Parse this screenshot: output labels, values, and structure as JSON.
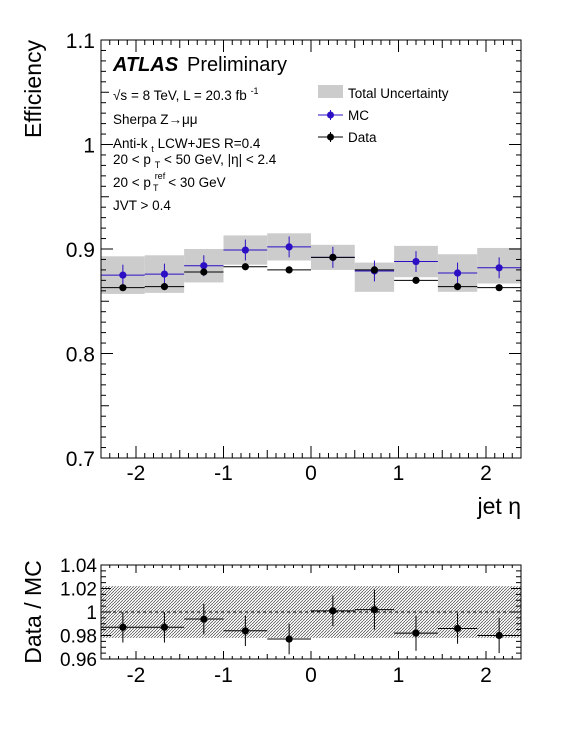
{
  "chart_data": [
    {
      "type": "scatter",
      "xlabel": "jet η",
      "ylabel": "Efficiency",
      "xlim": [
        -2.4,
        2.4
      ],
      "ylim": [
        0.7,
        1.1
      ],
      "x_ticks": [
        "-2",
        "-1",
        "0",
        "1",
        "2"
      ],
      "y_ticks": [
        "0.7",
        "0.8",
        "0.9",
        "1",
        "1.1"
      ],
      "annotations": {
        "atlas": "ATLAS",
        "preliminary": "Preliminary",
        "energy_sqrt": "√s",
        "energy_rest": "= 8 TeV, L = 20.3 fb",
        "energy_sup": "-1",
        "generator": "Sherpa Z→μμ",
        "jets_main": "Anti-k",
        "jets_sub": "t",
        "jets_rest": " LCW+JES R=0.4",
        "pt_a": "20 < p",
        "pt_sub": "T",
        "pt_b": " < 50 GeV, |η| < 2.4",
        "ptref_a": "20 < p",
        "ptref_sup": "ref",
        "ptref_sub": "T",
        "ptref_b": " < 30 GeV",
        "jvt": "JVT > 0.4"
      },
      "legend_position": "top-right",
      "legend": [
        "Total Uncertainty",
        "MC",
        "Data"
      ],
      "colors": {
        "mc": "#2a0fc4",
        "data": "#000000",
        "band": "#cccccc"
      },
      "bin_edges": [
        -2.4,
        -1.9,
        -1.45,
        -1.0,
        -0.5,
        0.0,
        0.5,
        0.95,
        1.45,
        1.9,
        2.4
      ],
      "x": [
        -2.15,
        -1.675,
        -1.225,
        -0.75,
        -0.25,
        0.25,
        0.725,
        1.2,
        1.675,
        2.15
      ],
      "series": [
        {
          "name": "MC",
          "values": [
            0.875,
            0.876,
            0.884,
            0.899,
            0.902,
            0.892,
            0.879,
            0.888,
            0.877,
            0.882
          ],
          "errors": [
            0.01,
            0.01,
            0.01,
            0.01,
            0.01,
            0.01,
            0.01,
            0.01,
            0.01,
            0.01
          ]
        },
        {
          "name": "Data",
          "values": [
            0.863,
            0.864,
            0.878,
            0.883,
            0.88,
            0.892,
            0.88,
            0.87,
            0.864,
            0.863
          ],
          "errors": [
            0.002,
            0.002,
            0.002,
            0.002,
            0.002,
            0.002,
            0.002,
            0.002,
            0.002,
            0.002
          ]
        }
      ],
      "band": {
        "centers": [
          0.875,
          0.876,
          0.884,
          0.899,
          0.902,
          0.892,
          0.873,
          0.888,
          0.877,
          0.884
        ],
        "half_widths": [
          0.018,
          0.018,
          0.016,
          0.014,
          0.013,
          0.012,
          0.014,
          0.015,
          0.018,
          0.017
        ]
      }
    },
    {
      "type": "scatter",
      "xlabel": "",
      "ylabel": "Data / MC",
      "xlim": [
        -2.4,
        2.4
      ],
      "ylim": [
        0.96,
        1.04
      ],
      "x_ticks": [
        "-2",
        "-1",
        "0",
        "1",
        "2"
      ],
      "y_ticks": [
        "0.96",
        "0.98",
        "1",
        "1.02",
        "1.04"
      ],
      "reference_line": 1.0,
      "x": [
        -2.15,
        -1.675,
        -1.225,
        -0.75,
        -0.25,
        0.25,
        0.725,
        1.2,
        1.675,
        2.15
      ],
      "series": [
        {
          "name": "",
          "values": [
            0.987,
            0.987,
            0.994,
            0.984,
            0.977,
            1.001,
            1.002,
            0.982,
            0.986,
            0.98
          ],
          "errors": [
            0.013,
            0.013,
            0.013,
            0.013,
            0.013,
            0.013,
            0.017,
            0.015,
            0.013,
            0.015
          ]
        }
      ],
      "band": {
        "center": 1.0,
        "half_width": 0.022
      }
    }
  ]
}
